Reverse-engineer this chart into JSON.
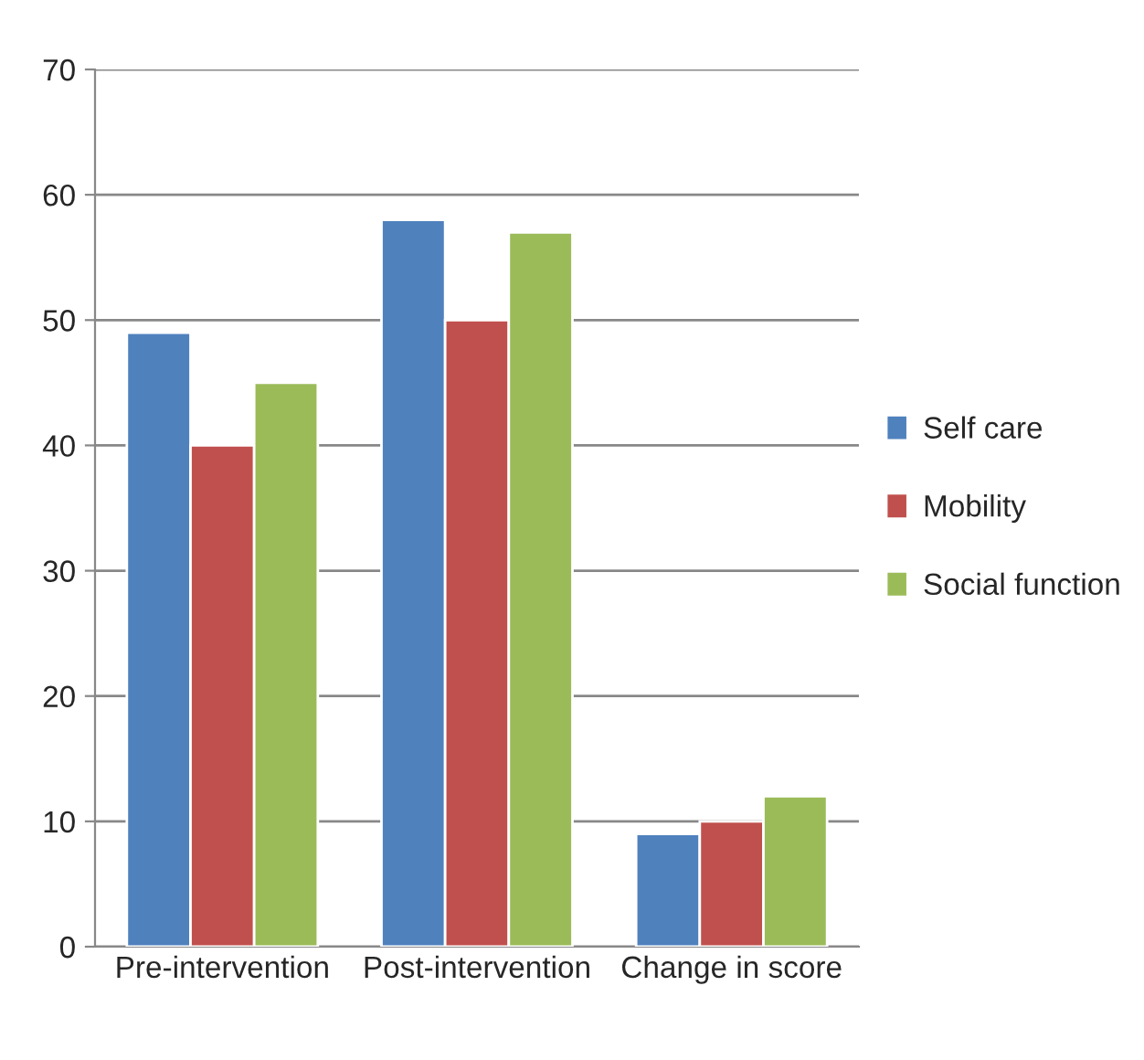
{
  "chart_data": {
    "type": "bar",
    "categories": [
      "Pre-intervention",
      "Post-intervention",
      "Change in score"
    ],
    "series": [
      {
        "name": "Self care",
        "color": "#4f81bd",
        "values": [
          49,
          58,
          9
        ]
      },
      {
        "name": "Mobility",
        "color": "#c0504d",
        "values": [
          40,
          50,
          10
        ]
      },
      {
        "name": "Social function",
        "color": "#9bbb59",
        "values": [
          45,
          57,
          12
        ]
      }
    ],
    "ylim": [
      0,
      70
    ],
    "yticks": [
      0,
      10,
      20,
      30,
      40,
      50,
      60,
      70
    ],
    "grid": "y",
    "legend": "right"
  }
}
